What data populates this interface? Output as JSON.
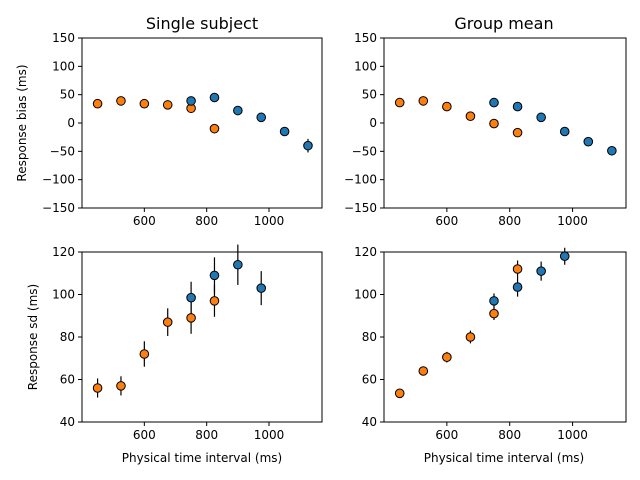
{
  "colors": {
    "series_a": "#1f77b4",
    "series_b": "#ff7f0e"
  },
  "chart_data": [
    {
      "type": "scatter",
      "panel": "top-left",
      "title": "Single subject",
      "xlabel": "",
      "ylabel": "Response bias (ms)",
      "xlim": [
        400,
        1170
      ],
      "ylim": [
        -150,
        150
      ],
      "xticks": [
        600,
        800,
        1000
      ],
      "yticks": [
        -150,
        -100,
        -50,
        0,
        50,
        100,
        150
      ],
      "grid": false,
      "series": [
        {
          "color": "#ff7f0e",
          "points": [
            {
              "x": 450,
              "y": 34,
              "err": 0
            },
            {
              "x": 525,
              "y": 39,
              "err": 0
            },
            {
              "x": 600,
              "y": 34,
              "err": 0
            },
            {
              "x": 675,
              "y": 32,
              "err": 0
            },
            {
              "x": 750,
              "y": 26,
              "err": 0
            },
            {
              "x": 825,
              "y": -10,
              "err": 0
            }
          ]
        },
        {
          "color": "#1f77b4",
          "points": [
            {
              "x": 750,
              "y": 39,
              "err": 2
            },
            {
              "x": 825,
              "y": 45,
              "err": 6
            },
            {
              "x": 900,
              "y": 22,
              "err": 5
            },
            {
              "x": 975,
              "y": 10,
              "err": 5
            },
            {
              "x": 1050,
              "y": -15,
              "err": 6
            },
            {
              "x": 1125,
              "y": -40,
              "err": 12
            }
          ]
        }
      ]
    },
    {
      "type": "scatter",
      "panel": "top-right",
      "title": "Group mean",
      "xlabel": "",
      "ylabel": "",
      "xlim": [
        400,
        1170
      ],
      "ylim": [
        -150,
        150
      ],
      "xticks": [
        600,
        800,
        1000
      ],
      "yticks": [
        -150,
        -100,
        -50,
        0,
        50,
        100,
        150
      ],
      "grid": false,
      "series": [
        {
          "color": "#ff7f0e",
          "points": [
            {
              "x": 450,
              "y": 36,
              "err": 0
            },
            {
              "x": 525,
              "y": 39,
              "err": 0
            },
            {
              "x": 600,
              "y": 29,
              "err": 0
            },
            {
              "x": 675,
              "y": 12,
              "err": 0
            },
            {
              "x": 750,
              "y": -1,
              "err": 0
            },
            {
              "x": 825,
              "y": -17,
              "err": 0
            }
          ]
        },
        {
          "color": "#1f77b4",
          "points": [
            {
              "x": 750,
              "y": 36,
              "err": 0
            },
            {
              "x": 825,
              "y": 29,
              "err": 0
            },
            {
              "x": 900,
              "y": 10,
              "err": 0
            },
            {
              "x": 975,
              "y": -15,
              "err": 0
            },
            {
              "x": 1050,
              "y": -33,
              "err": 0
            },
            {
              "x": 1125,
              "y": -49,
              "err": 0
            }
          ]
        }
      ]
    },
    {
      "type": "scatter",
      "panel": "bottom-left",
      "title": "",
      "xlabel": "Physical time interval (ms)",
      "ylabel": "Response sd (ms)",
      "xlim": [
        400,
        1170
      ],
      "ylim": [
        40,
        120
      ],
      "xticks": [
        600,
        800,
        1000
      ],
      "yticks": [
        40,
        60,
        80,
        100,
        120
      ],
      "grid": false,
      "series": [
        {
          "color": "#ff7f0e",
          "points": [
            {
              "x": 450,
              "y": 56,
              "err": 4.5
            },
            {
              "x": 525,
              "y": 57,
              "err": 4.5
            },
            {
              "x": 600,
              "y": 72,
              "err": 6
            },
            {
              "x": 675,
              "y": 87,
              "err": 6.5
            },
            {
              "x": 750,
              "y": 89,
              "err": 7.5
            },
            {
              "x": 825,
              "y": 97,
              "err": 7.5
            }
          ]
        },
        {
          "color": "#1f77b4",
          "points": [
            {
              "x": 750,
              "y": 98.5,
              "err": 7.5
            },
            {
              "x": 825,
              "y": 109,
              "err": 8.5
            },
            {
              "x": 900,
              "y": 114,
              "err": 9.5
            },
            {
              "x": 975,
              "y": 103,
              "err": 8
            }
          ]
        }
      ]
    },
    {
      "type": "scatter",
      "panel": "bottom-right",
      "title": "",
      "xlabel": "Physical time interval (ms)",
      "ylabel": "",
      "xlim": [
        400,
        1170
      ],
      "ylim": [
        40,
        120
      ],
      "xticks": [
        600,
        800,
        1000
      ],
      "yticks": [
        40,
        60,
        80,
        100,
        120
      ],
      "grid": false,
      "series": [
        {
          "color": "#ff7f0e",
          "points": [
            {
              "x": 450,
              "y": 53.5,
              "err": 1.5
            },
            {
              "x": 525,
              "y": 64,
              "err": 2
            },
            {
              "x": 600,
              "y": 70.5,
              "err": 2.5
            },
            {
              "x": 675,
              "y": 80,
              "err": 3
            },
            {
              "x": 750,
              "y": 91,
              "err": 3
            },
            {
              "x": 825,
              "y": 112,
              "err": 4
            }
          ]
        },
        {
          "color": "#1f77b4",
          "points": [
            {
              "x": 750,
              "y": 97,
              "err": 3.5
            },
            {
              "x": 825,
              "y": 103.5,
              "err": 4.5
            },
            {
              "x": 900,
              "y": 111,
              "err": 4.5
            },
            {
              "x": 975,
              "y": 118,
              "err": 4
            }
          ]
        }
      ]
    }
  ]
}
